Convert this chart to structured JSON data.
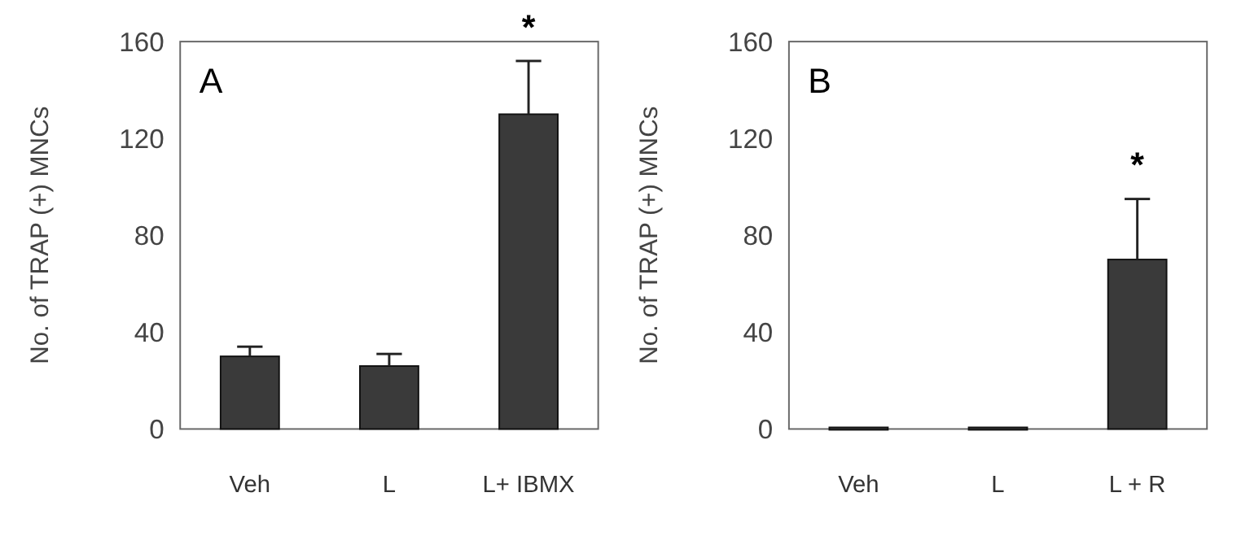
{
  "chart_data": [
    {
      "type": "bar",
      "categories": [
        "Veh",
        "L",
        "L+ IBMX"
      ],
      "values": [
        30,
        26,
        130
      ],
      "errors": [
        [
          30,
          34
        ],
        [
          26,
          31
        ],
        [
          130,
          152
        ]
      ],
      "color": "#3a3a3a",
      "ylabel": "No. of TRAP (+) MNCs",
      "ylim": [
        0,
        160
      ],
      "yticks": [
        0,
        40,
        80,
        120,
        160
      ],
      "annotations": [
        "A",
        "*"
      ]
    },
    {
      "type": "bar",
      "categories": [
        "Veh",
        "L",
        "L + R"
      ],
      "values": [
        0,
        0,
        70
      ],
      "errors": [
        null,
        null,
        [
          70,
          95
        ]
      ],
      "color": "#3a3a3a",
      "ylabel": "No. of TRAP (+) MNCs",
      "ylim": [
        0,
        160
      ],
      "yticks": [
        0,
        40,
        80,
        120,
        160
      ],
      "annotations": [
        "B",
        "*"
      ]
    }
  ]
}
